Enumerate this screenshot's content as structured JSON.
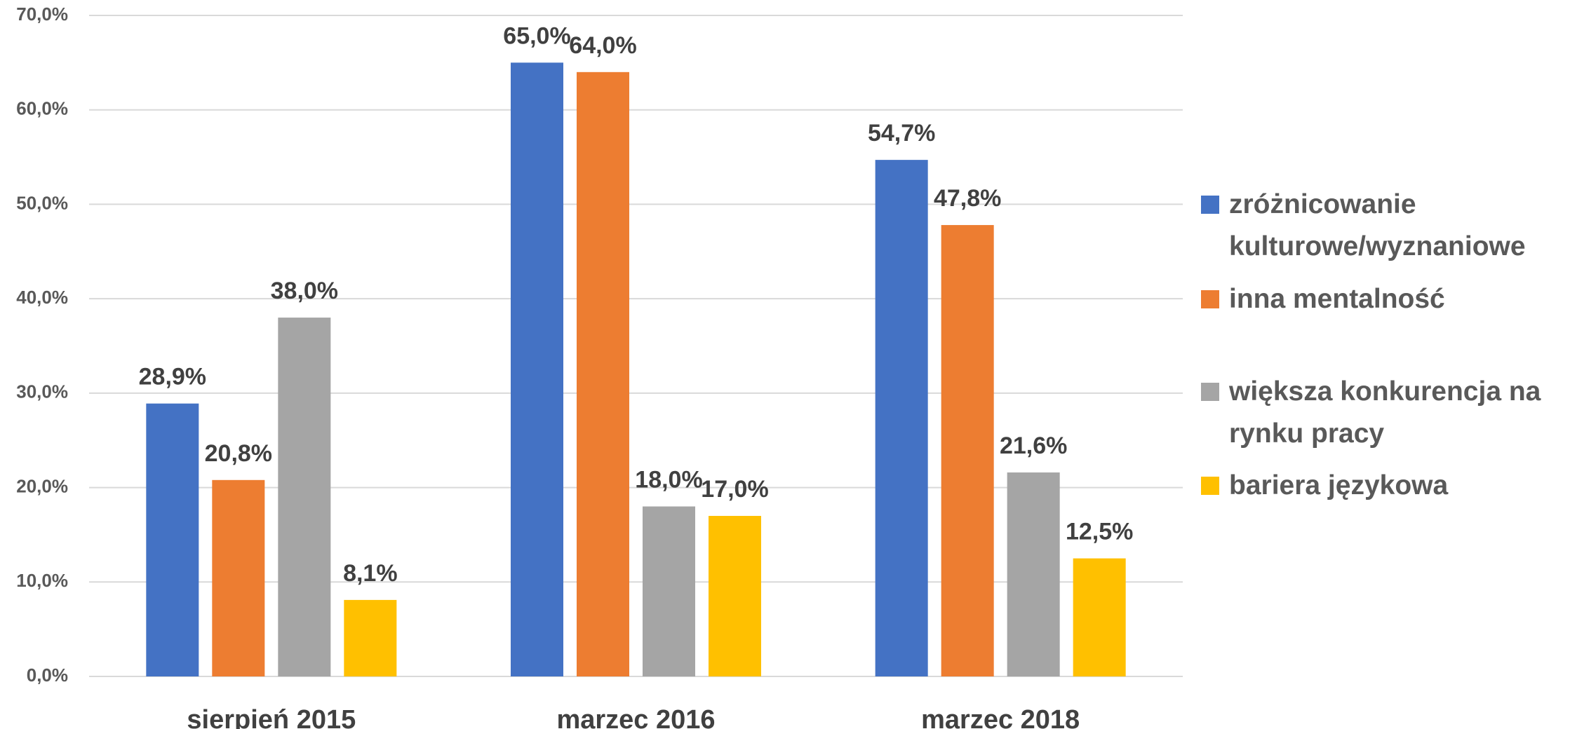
{
  "chart_data": {
    "type": "bar",
    "categories": [
      "sierpień 2015",
      "marzec 2016",
      "marzec 2018"
    ],
    "series": [
      {
        "name": "zróżnicowanie kulturowe/wyznaniowe",
        "color": "#4472c4",
        "values": [
          28.9,
          65.0,
          54.7
        ],
        "value_labels": [
          "28,9%",
          "65,0%",
          "54,7%"
        ]
      },
      {
        "name": "inna mentalność",
        "color": "#ed7d31",
        "values": [
          20.8,
          64.0,
          47.8
        ],
        "value_labels": [
          "20,8%",
          "64,0%",
          "47,8%"
        ]
      },
      {
        "name": "większa konkurencja na rynku pracy",
        "color": "#a5a5a5",
        "values": [
          38.0,
          18.0,
          21.6
        ],
        "value_labels": [
          "38,0%",
          "18,0%",
          "21,6%"
        ]
      },
      {
        "name": "bariera językowa",
        "color": "#ffc000",
        "values": [
          8.1,
          17.0,
          12.5
        ],
        "value_labels": [
          "8,1%",
          "17,0%",
          "12,5%"
        ]
      }
    ],
    "ylim": [
      0,
      70
    ],
    "yticks": [
      {
        "value": 0,
        "label": "0,0%"
      },
      {
        "value": 10,
        "label": "10,0%"
      },
      {
        "value": 20,
        "label": "20,0%"
      },
      {
        "value": 30,
        "label": "30,0%"
      },
      {
        "value": 40,
        "label": "40,0%"
      },
      {
        "value": 50,
        "label": "50,0%"
      },
      {
        "value": 60,
        "label": "60,0%"
      },
      {
        "value": 70,
        "label": "70,0%"
      }
    ],
    "grid": true,
    "legend": "right"
  }
}
